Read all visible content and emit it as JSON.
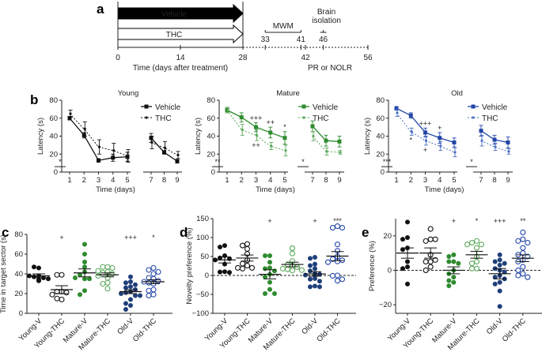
{
  "panel_labels": {
    "a": "a",
    "b": "b",
    "c": "c",
    "d": "d",
    "e": "e"
  },
  "colors": {
    "young": "#111111",
    "mature": "#2e8b2e",
    "old": "#2346a8",
    "mature_light": "#5aa85a",
    "old_light": "#4a6fc0",
    "old_dark": "#1f3f7a"
  },
  "chart_data": [
    {
      "id": "a",
      "type": "timeline",
      "xlabel": "Time (days after treatment)",
      "ticks": [
        0,
        14,
        28,
        42,
        56
      ],
      "treatment_bars": [
        {
          "label": "Vehicle",
          "start": 0,
          "end": 28,
          "fill": "solid"
        },
        {
          "label": "THC",
          "start": 0,
          "end": 28,
          "fill": "open"
        }
      ],
      "annotations": [
        {
          "label": "MWM",
          "start": 33,
          "end": 41,
          "start_label": "33",
          "end_label": "41"
        },
        {
          "label": "Brain isolation",
          "line1": "Brain",
          "line2": "isolation",
          "day": 46,
          "day_label": "46"
        }
      ],
      "bottom_note": "PR or  NOLR"
    },
    {
      "id": "b-young",
      "type": "line",
      "title": "Young",
      "xlabel": "Time (days)",
      "ylabel": "Latency (s)",
      "ylim": [
        0,
        80
      ],
      "yticks": [
        0,
        20,
        40,
        60,
        80
      ],
      "x": [
        1,
        2,
        3,
        4,
        5,
        7,
        8,
        9
      ],
      "series": [
        {
          "name": "Vehicle",
          "style": "solid",
          "values": [
            60,
            41,
            13,
            16,
            17,
            38,
            22,
            12
          ],
          "err": [
            2,
            3,
            2,
            4,
            5,
            5,
            2,
            2
          ]
        },
        {
          "name": "THC",
          "style": "dotted",
          "values": [
            65,
            48,
            28,
            24,
            18,
            33,
            27,
            19
          ],
          "err": [
            4,
            8,
            8,
            8,
            7,
            7,
            7,
            4
          ]
        }
      ],
      "sig_marks": [
        {
          "text": "*",
          "x": 1,
          "type": "group-bar"
        }
      ]
    },
    {
      "id": "b-mature",
      "type": "line",
      "title": "Mature",
      "xlabel": "Time (days)",
      "ylabel": "Latency (s)",
      "ylim": [
        0,
        80
      ],
      "yticks": [
        0,
        20,
        40,
        60,
        80
      ],
      "x": [
        1,
        2,
        3,
        4,
        5,
        7,
        8,
        9
      ],
      "series": [
        {
          "name": "Vehicle",
          "style": "solid",
          "values": [
            69,
            61,
            50,
            44,
            38,
            51,
            35,
            34
          ],
          "err": [
            3,
            5,
            5,
            6,
            7,
            6,
            6,
            6
          ]
        },
        {
          "name": "THC",
          "style": "dotted",
          "values": [
            69,
            47,
            41,
            29,
            24,
            40,
            23,
            22
          ],
          "err": [
            3,
            6,
            6,
            4,
            6,
            5,
            4,
            2
          ]
        }
      ],
      "sig_marks": [
        {
          "text": "**",
          "x": 1,
          "type": "group-bar"
        },
        {
          "text": "+++",
          "x": 3,
          "position": "above"
        },
        {
          "text": "++",
          "x": 3,
          "position": "below"
        },
        {
          "text": "++",
          "x": 4,
          "position": "above"
        },
        {
          "text": "*",
          "x": 5,
          "position": "above"
        },
        {
          "text": "*",
          "x": 7,
          "type": "group-bar"
        }
      ]
    },
    {
      "id": "b-old",
      "type": "line",
      "title": "Old",
      "xlabel": "Time (days)",
      "ylabel": "Latency (s)",
      "ylim": [
        0,
        80
      ],
      "yticks": [
        0,
        20,
        40,
        60,
        80
      ],
      "x": [
        1,
        2,
        3,
        4,
        5,
        7,
        8,
        9
      ],
      "series": [
        {
          "name": "Vehicle",
          "style": "solid",
          "values": [
            71,
            63,
            44,
            38,
            33,
            46,
            36,
            33
          ],
          "err": [
            2,
            3,
            5,
            6,
            5,
            6,
            5,
            6
          ]
        },
        {
          "name": "THC",
          "style": "dotted",
          "values": [
            66,
            45,
            35,
            29,
            22,
            35,
            28,
            23
          ],
          "err": [
            4,
            4,
            5,
            5,
            5,
            6,
            4,
            3
          ]
        }
      ],
      "sig_marks": [
        {
          "text": "***",
          "x": 1,
          "type": "group-bar"
        },
        {
          "text": "*",
          "x": 2,
          "position": "below"
        },
        {
          "text": "+++",
          "x": 3,
          "position": "above"
        },
        {
          "text": "+",
          "x": 3,
          "position": "below"
        },
        {
          "text": "+",
          "x": 4,
          "position": "above"
        },
        {
          "text": "*",
          "x": 7,
          "type": "group-bar"
        }
      ]
    },
    {
      "id": "c",
      "type": "scatter",
      "ylabel": "Time in target sector (s)",
      "ylim": [
        0,
        80
      ],
      "yticks": [
        0,
        20,
        40,
        60,
        80
      ],
      "categories": [
        "Young-V",
        "Young-THC",
        "Mature-V",
        "Mature-THC",
        "Old-V",
        "Old-THC"
      ],
      "groups": [
        {
          "name": "Young-V",
          "fill": "solid",
          "color": "young",
          "mean": 38,
          "sem": 2,
          "sig": "",
          "points": [
            46,
            47,
            38,
            37,
            36,
            38,
            35,
            33,
            34
          ]
        },
        {
          "name": "Young-THC",
          "fill": "open",
          "color": "young",
          "mean": 24,
          "sem": 4,
          "sig": "+",
          "points": [
            39,
            39,
            22,
            22,
            21,
            19,
            14,
            15
          ]
        },
        {
          "name": "Mature-V",
          "fill": "solid",
          "color": "mature",
          "mean": 41,
          "sem": 4,
          "sig": "",
          "points": [
            70,
            60,
            52,
            47,
            42,
            39,
            35,
            35,
            36,
            23,
            19
          ]
        },
        {
          "name": "Mature-THC",
          "fill": "open",
          "color": "mature_light",
          "mean": 39,
          "sem": 2,
          "sig": "",
          "points": [
            47,
            47,
            46,
            43,
            42,
            41,
            40,
            38,
            36,
            31,
            30,
            25
          ]
        },
        {
          "name": "Old-V",
          "fill": "solid",
          "color": "old_dark",
          "mean": 22,
          "sem": 2,
          "sig": "+++",
          "points": [
            37,
            32,
            31,
            29,
            27,
            26,
            24,
            22,
            21,
            20,
            18,
            18,
            14,
            10,
            8,
            4
          ]
        },
        {
          "name": "Old-THC",
          "fill": "open",
          "color": "old",
          "mean": 32,
          "sem": 2,
          "sig": "*",
          "points": [
            46,
            44,
            42,
            40,
            36,
            35,
            33,
            32,
            31,
            30,
            24,
            23,
            19,
            18
          ]
        }
      ]
    },
    {
      "id": "d",
      "type": "scatter",
      "ylabel": "Novelty preference (%)",
      "ylim": [
        -100,
        150
      ],
      "yticks": [
        -100,
        -50,
        0,
        50,
        100,
        150
      ],
      "reference_line": 0,
      "categories": [
        "Young-V",
        "Young-THC",
        "Mature-V",
        "Mature-THC",
        "Old-V",
        "Old-THC"
      ],
      "groups": [
        {
          "name": "Young-V",
          "fill": "solid",
          "color": "young",
          "mean": 41,
          "sem": 8,
          "sig": "",
          "points": [
            79,
            75,
            52,
            46,
            44,
            41,
            30,
            10,
            9,
            8
          ]
        },
        {
          "name": "Young-THC",
          "fill": "open",
          "color": "young",
          "mean": 46,
          "sem": 8,
          "sig": "",
          "points": [
            83,
            79,
            70,
            57,
            40,
            31,
            26,
            20,
            18,
            20
          ]
        },
        {
          "name": "Mature-V",
          "fill": "solid",
          "color": "mature",
          "mean": 3,
          "sem": 12,
          "sig": "+",
          "points": [
            52,
            52,
            35,
            20,
            18,
            12,
            3,
            -4,
            -18,
            -37,
            -48,
            -48
          ]
        },
        {
          "name": "Mature-THC",
          "fill": "open",
          "color": "mature_light",
          "mean": 29,
          "sem": 6,
          "sig": "",
          "points": [
            72,
            58,
            38,
            28,
            25,
            22,
            18,
            16,
            14,
            13
          ]
        },
        {
          "name": "Old-V",
          "fill": "solid",
          "color": "old_dark",
          "mean": 4,
          "sem": 6,
          "sig": "+",
          "points": [
            48,
            45,
            30,
            26,
            18,
            12,
            5,
            3,
            1,
            -8,
            -10,
            -15,
            -28,
            -30,
            -30
          ]
        },
        {
          "name": "Old-THC",
          "fill": "open",
          "color": "old",
          "mean": 51,
          "sem": 12,
          "sig": "***",
          "points": [
            130,
            126,
            126,
            82,
            65,
            50,
            43,
            40,
            37,
            35,
            0,
            -1,
            -10,
            -14
          ]
        }
      ]
    },
    {
      "id": "e",
      "type": "scatter",
      "ylabel": "Preference (%)",
      "ylim": [
        -25,
        30
      ],
      "yticks": [
        -20,
        0,
        20
      ],
      "reference_line": 0,
      "categories": [
        "Young-V",
        "Young-THC",
        "Mature-V",
        "Mature-THC",
        "Old-V",
        "Old-THC"
      ],
      "groups": [
        {
          "name": "Young-V",
          "fill": "solid",
          "color": "young",
          "mean": 10,
          "sem": 3,
          "sig": "",
          "points": [
            28,
            19,
            18,
            13,
            12,
            5,
            2,
            1,
            -8
          ]
        },
        {
          "name": "Young-THC",
          "fill": "open",
          "color": "young",
          "mean": 10,
          "sem": 3,
          "sig": "",
          "points": [
            24,
            18,
            17,
            18,
            9,
            5,
            5,
            6,
            2,
            0
          ]
        },
        {
          "name": "Mature-V",
          "fill": "solid",
          "color": "mature",
          "mean": 0,
          "sem": 2,
          "sig": "+",
          "points": [
            9,
            8,
            5,
            5,
            4,
            0,
            -2,
            -4,
            -6,
            -7,
            -9
          ]
        },
        {
          "name": "Mature-THC",
          "fill": "open",
          "color": "mature_light",
          "mean": 9,
          "sem": 2,
          "sig": "*",
          "points": [
            17,
            16,
            15,
            15,
            13,
            8,
            5,
            4,
            1,
            1
          ]
        },
        {
          "name": "Old-V",
          "fill": "solid",
          "color": "old_dark",
          "mean": -2,
          "sem": 3,
          "sig": "+++",
          "points": [
            9,
            6,
            5,
            4,
            3,
            1,
            0,
            -1,
            -3,
            -4,
            -5,
            -7,
            -8,
            -12,
            -21
          ]
        },
        {
          "name": "Old-THC",
          "fill": "open",
          "color": "old",
          "mean": 7,
          "sem": 2,
          "sig": "**",
          "points": [
            22,
            18,
            17,
            16,
            13,
            10,
            9,
            8,
            6,
            5,
            2,
            0,
            -2,
            -3,
            -4
          ]
        }
      ]
    }
  ]
}
